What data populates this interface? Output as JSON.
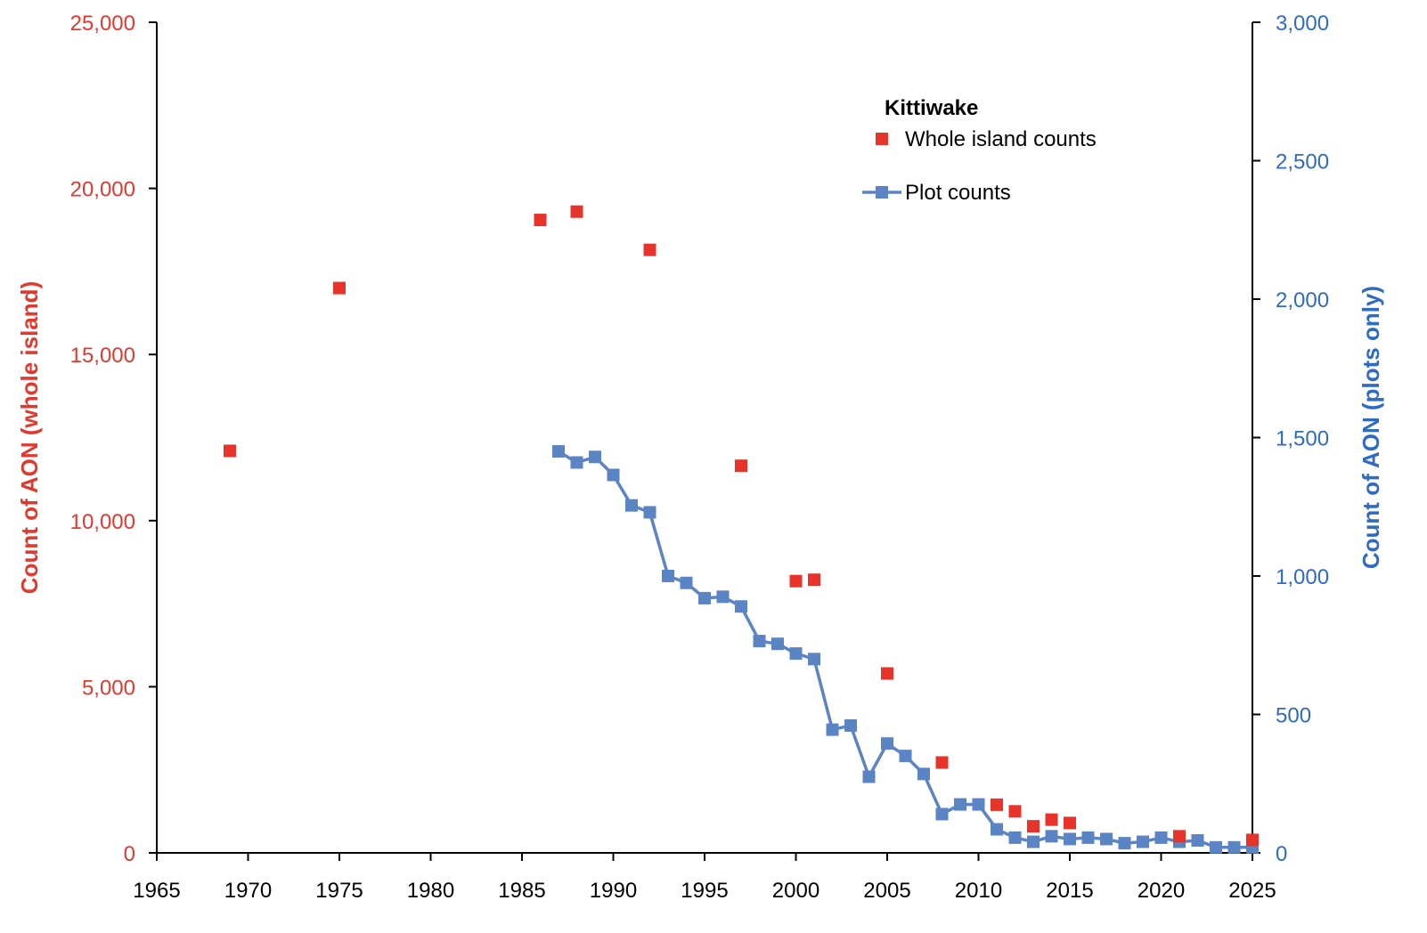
{
  "chart_data": {
    "type": "scatter+line",
    "title": "",
    "xlabel": "",
    "x_range": [
      1965,
      2025
    ],
    "x_ticks": [
      1965,
      1970,
      1975,
      1980,
      1985,
      1990,
      1995,
      2000,
      2005,
      2010,
      2015,
      2020,
      2025
    ],
    "y_left": {
      "label": "Count of AON (whole island)",
      "range": [
        0,
        25000
      ],
      "ticks": [
        0,
        5000,
        10000,
        15000,
        20000,
        25000
      ],
      "tick_labels": [
        "0",
        "5,000",
        "10,000",
        "15,000",
        "20,000",
        "25,000"
      ],
      "color": "#e03a2f"
    },
    "y_right": {
      "label": "Count of AON (plots only)",
      "range": [
        0,
        3000
      ],
      "ticks": [
        0,
        500,
        1000,
        1500,
        2000,
        2500,
        3000
      ],
      "tick_labels": [
        "0",
        "500",
        "1,000",
        "1,500",
        "2,000",
        "2,500",
        "3,000"
      ],
      "color": "#2f6bc0"
    },
    "legend": {
      "title": "Kittiwake",
      "placement": "top-right",
      "entries": [
        "Whole island counts",
        "Plot counts"
      ]
    },
    "grid": false,
    "series": [
      {
        "name": "Whole island counts",
        "type": "scatter",
        "axis": "left",
        "color": "#e8332a",
        "x": [
          1969,
          1975,
          1986,
          1988,
          1992,
          1997,
          2000,
          2001,
          2005,
          2008,
          2011,
          2012,
          2013,
          2014,
          2015,
          2021,
          2025
        ],
        "y": [
          12100,
          17000,
          19050,
          19300,
          18150,
          11650,
          8180,
          8220,
          5400,
          2720,
          1450,
          1250,
          800,
          1000,
          900,
          500,
          390
        ]
      },
      {
        "name": "Plot counts",
        "type": "line",
        "axis": "right",
        "color": "#5b84c4",
        "x": [
          1987,
          1988,
          1989,
          1990,
          1991,
          1992,
          1993,
          1994,
          1995,
          1996,
          1997,
          1998,
          1999,
          2000,
          2001,
          2002,
          2003,
          2004,
          2005,
          2006,
          2007,
          2008,
          2009,
          2010,
          2011,
          2012,
          2013,
          2014,
          2015,
          2016,
          2017,
          2018,
          2019,
          2020,
          2021,
          2022,
          2023,
          2024,
          2025
        ],
        "y": [
          1450,
          1410,
          1430,
          1365,
          1255,
          1230,
          1000,
          975,
          920,
          925,
          890,
          765,
          755,
          720,
          700,
          445,
          460,
          275,
          395,
          350,
          285,
          140,
          175,
          175,
          85,
          55,
          40,
          60,
          50,
          55,
          50,
          35,
          40,
          55,
          40,
          45,
          20,
          20,
          20
        ]
      }
    ]
  }
}
